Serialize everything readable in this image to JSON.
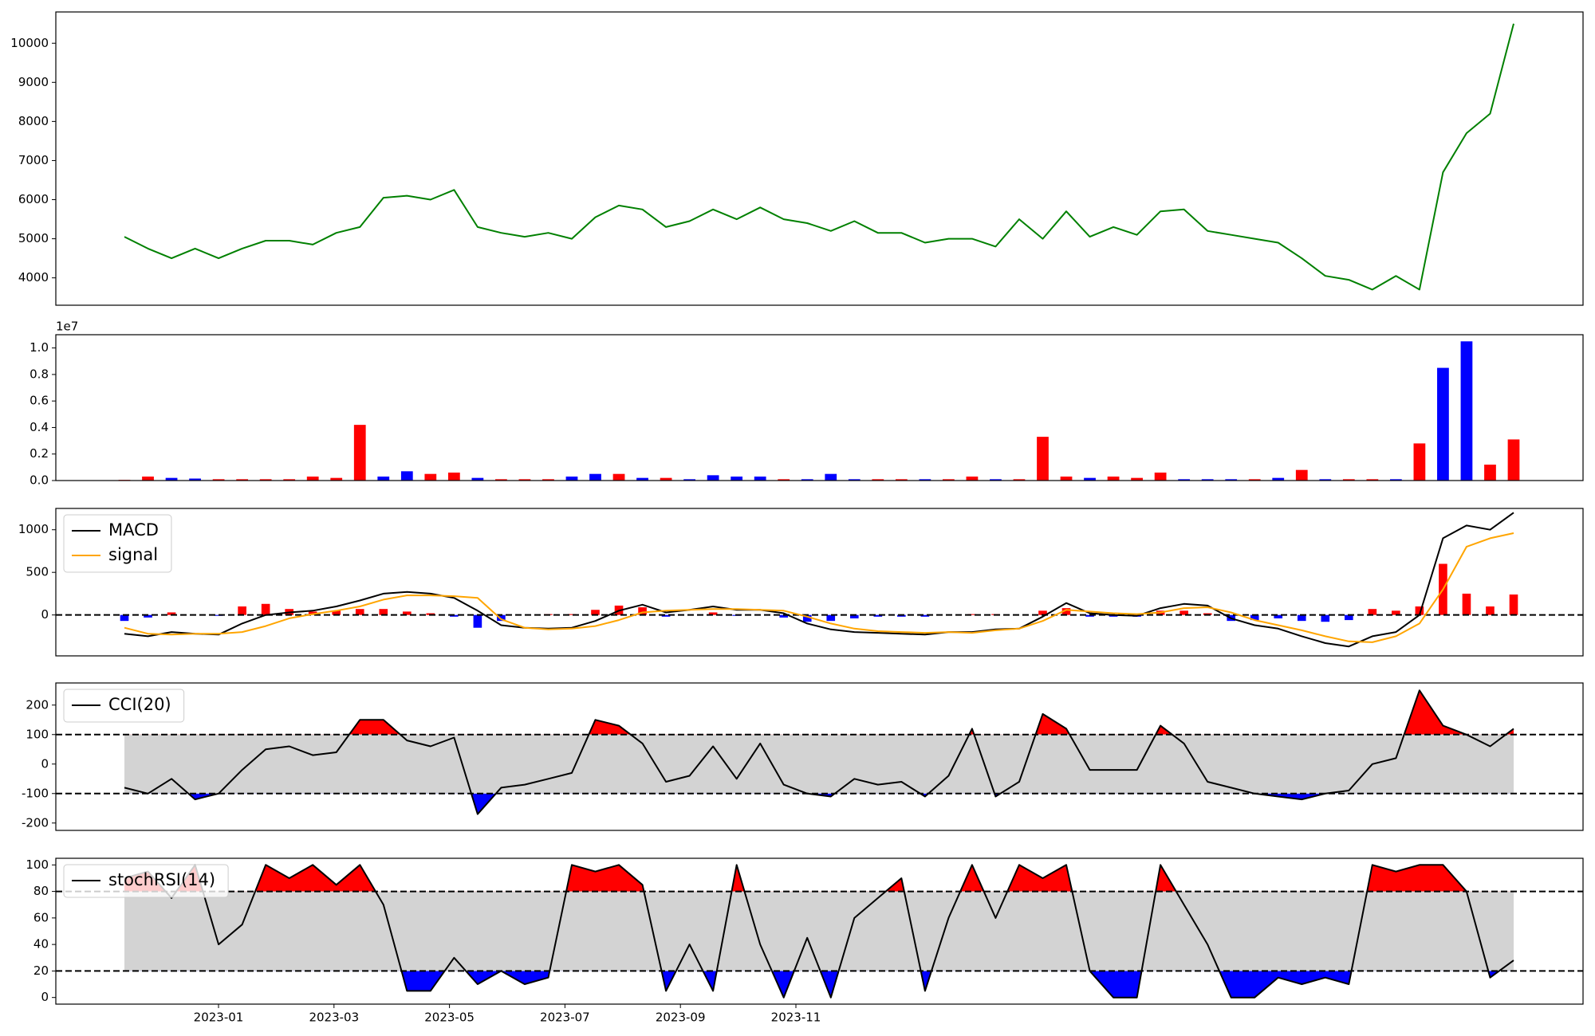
{
  "chart_data": [
    {
      "type": "line",
      "series": [
        {
          "name": "close",
          "color": "#008000",
          "values": [
            5050,
            4750,
            4500,
            4750,
            4500,
            4750,
            4950,
            4950,
            4850,
            5150,
            5300,
            6050,
            6100,
            6000,
            6250,
            5300,
            5150,
            5050,
            5150,
            5000,
            5550,
            5850,
            5750,
            5300,
            5450,
            5750,
            5500,
            5800,
            5500,
            5400,
            5200,
            5450,
            5150,
            5150,
            4900,
            5000,
            5000,
            4800,
            5500,
            5000,
            5700,
            5050,
            5300,
            5100,
            5700,
            5750,
            5200,
            5100,
            5000,
            4900,
            4500,
            4050,
            3950,
            3700,
            4050,
            3700,
            6700,
            7700,
            8200,
            10500
          ]
        }
      ],
      "ylim": [
        3300,
        10800
      ],
      "yticks": [
        4000,
        5000,
        6000,
        7000,
        8000,
        9000,
        10000
      ],
      "legend": false
    },
    {
      "type": "bar",
      "offset_label": "1e7",
      "values": [
        50000,
        300000,
        200000,
        150000,
        100000,
        100000,
        100000,
        100000,
        300000,
        200000,
        4200000,
        300000,
        700000,
        500000,
        600000,
        200000,
        100000,
        100000,
        100000,
        300000,
        500000,
        500000,
        200000,
        200000,
        100000,
        400000,
        300000,
        300000,
        100000,
        100000,
        500000,
        100000,
        100000,
        100000,
        100000,
        100000,
        300000,
        100000,
        100000,
        3300000,
        300000,
        200000,
        300000,
        200000,
        600000,
        100000,
        100000,
        100000,
        100000,
        200000,
        800000,
        100000,
        100000,
        100000,
        100000,
        2800000,
        8500000,
        10500000,
        1200000,
        3100000
      ],
      "colors": [
        "red",
        "red",
        "blue",
        "blue",
        "red",
        "red",
        "red",
        "red",
        "red",
        "red",
        "red",
        "blue",
        "blue",
        "red",
        "red",
        "blue",
        "red",
        "red",
        "red",
        "blue",
        "blue",
        "red",
        "blue",
        "red",
        "blue",
        "blue",
        "blue",
        "blue",
        "red",
        "blue",
        "blue",
        "blue",
        "red",
        "red",
        "blue",
        "red",
        "red",
        "blue",
        "red",
        "red",
        "red",
        "blue",
        "red",
        "red",
        "red",
        "blue",
        "blue",
        "blue",
        "red",
        "blue",
        "red",
        "blue",
        "red",
        "red",
        "blue",
        "red",
        "blue",
        "blue",
        "red",
        "red"
      ],
      "ylim": [
        0,
        11000000
      ],
      "yticks": [
        {
          "value": 0,
          "label": "0.0"
        },
        {
          "value": 2000000,
          "label": "0.2"
        },
        {
          "value": 4000000,
          "label": "0.4"
        },
        {
          "value": 6000000,
          "label": "0.6"
        },
        {
          "value": 8000000,
          "label": "0.8"
        },
        {
          "value": 10000000,
          "label": "1.0"
        }
      ]
    },
    {
      "type": "macd",
      "series": [
        {
          "name": "MACD",
          "color": "#000000",
          "values": [
            -220,
            -250,
            -200,
            -220,
            -230,
            -100,
            0,
            30,
            50,
            100,
            170,
            250,
            270,
            250,
            200,
            50,
            -120,
            -150,
            -160,
            -150,
            -70,
            50,
            120,
            30,
            60,
            100,
            60,
            60,
            20,
            -100,
            -170,
            -200,
            -210,
            -220,
            -230,
            -200,
            -200,
            -170,
            -160,
            -20,
            140,
            20,
            0,
            -10,
            80,
            130,
            110,
            -40,
            -120,
            -160,
            -250,
            -330,
            -370,
            -250,
            -200,
            0,
            900,
            1050,
            1000,
            1200
          ]
        },
        {
          "name": "signal",
          "color": "#ffa500",
          "values": [
            -150,
            -220,
            -230,
            -220,
            -220,
            -200,
            -130,
            -40,
            10,
            50,
            100,
            180,
            230,
            230,
            220,
            200,
            -50,
            -150,
            -170,
            -160,
            -130,
            -60,
            30,
            50,
            60,
            70,
            70,
            60,
            50,
            -20,
            -100,
            -160,
            -190,
            -200,
            -210,
            -200,
            -210,
            -180,
            -160,
            -70,
            60,
            40,
            20,
            10,
            30,
            80,
            90,
            30,
            -60,
            -120,
            -180,
            -250,
            -310,
            -320,
            -250,
            -100,
            300,
            800,
            900,
            960
          ]
        }
      ],
      "histogram": {
        "positive_color": "#ff0000",
        "negative_color": "#0000ff",
        "values": [
          -70,
          -30,
          30,
          0,
          -10,
          100,
          130,
          70,
          40,
          50,
          70,
          70,
          40,
          20,
          -20,
          -150,
          -70,
          0,
          10,
          10,
          60,
          110,
          90,
          -20,
          0,
          30,
          -10,
          0,
          -30,
          -80,
          -70,
          -40,
          -20,
          -20,
          -20,
          0,
          10,
          10,
          0,
          50,
          80,
          -20,
          -20,
          -20,
          50,
          50,
          20,
          -70,
          -60,
          -40,
          -70,
          -80,
          -60,
          70,
          50,
          100,
          600,
          250,
          100,
          240
        ]
      },
      "reference_lines": [
        0
      ],
      "ylim": [
        -480,
        1250
      ],
      "yticks": [
        0,
        500,
        1000
      ],
      "legend": "upper left"
    },
    {
      "type": "oscillator",
      "series": [
        {
          "name": "CCI(20)",
          "color": "#000000",
          "values": [
            -80,
            -100,
            -50,
            -120,
            -100,
            -20,
            50,
            60,
            30,
            40,
            150,
            150,
            80,
            60,
            90,
            -170,
            -80,
            -70,
            -50,
            -30,
            150,
            130,
            70,
            -60,
            -40,
            60,
            -50,
            70,
            -70,
            -100,
            -110,
            -50,
            -70,
            -60,
            -110,
            -40,
            120,
            -110,
            -60,
            170,
            120,
            -20,
            -20,
            -20,
            130,
            70,
            -60,
            -80,
            -100,
            -110,
            -120,
            -100,
            -90,
            0,
            20,
            250,
            130,
            100,
            60,
            120
          ]
        }
      ],
      "thresholds": [
        -100,
        100
      ],
      "upper_color": "#ff0000",
      "lower_color": "#0000ff",
      "band_color": "#d3d3d3",
      "ylim": [
        -225,
        275
      ],
      "yticks": [
        -200,
        -100,
        0,
        100,
        200
      ],
      "legend": "upper left"
    },
    {
      "type": "oscillator",
      "series": [
        {
          "name": "stochRSI(14)",
          "color": "#000000",
          "values": [
            90,
            95,
            75,
            100,
            40,
            55,
            100,
            90,
            100,
            85,
            100,
            70,
            5,
            5,
            30,
            10,
            20,
            10,
            15,
            100,
            95,
            100,
            85,
            5,
            40,
            5,
            100,
            40,
            0,
            45,
            0,
            60,
            75,
            90,
            5,
            60,
            100,
            60,
            100,
            90,
            100,
            20,
            0,
            0,
            100,
            70,
            40,
            0,
            0,
            15,
            10,
            15,
            10,
            100,
            95,
            100,
            100,
            80,
            15,
            28
          ]
        }
      ],
      "thresholds": [
        20,
        80
      ],
      "upper_color": "#ff0000",
      "lower_color": "#0000ff",
      "band_color": "#d3d3d3",
      "ylim": [
        -5,
        105
      ],
      "yticks": [
        0,
        20,
        40,
        60,
        80,
        100
      ],
      "legend": "upper left",
      "xticks": [
        "2023-01",
        "2023-03",
        "2023-05",
        "2023-07",
        "2023-09",
        "2023-11"
      ]
    }
  ]
}
